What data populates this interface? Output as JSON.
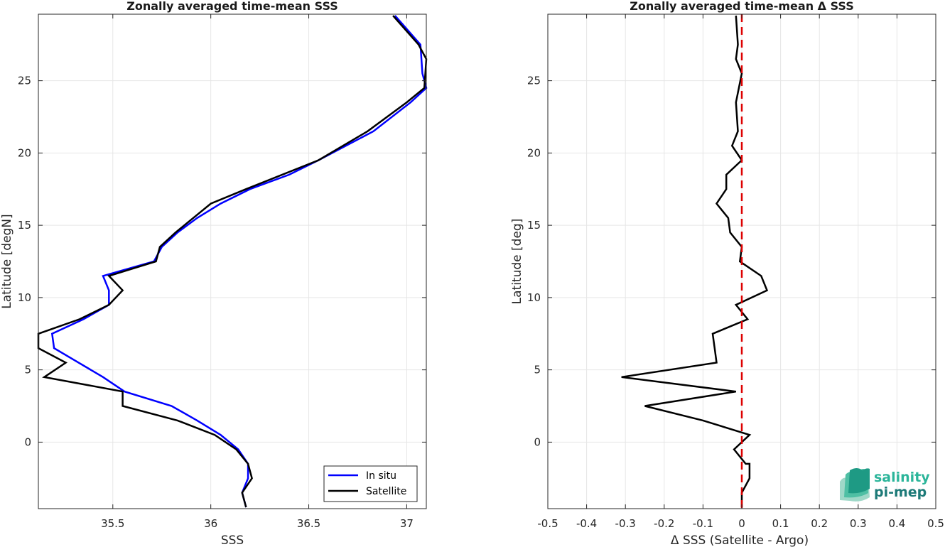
{
  "chart_data": [
    {
      "type": "line",
      "title": "Zonally averaged time-mean SSS",
      "xlabel": "SSS",
      "ylabel": "Latitude [degN]",
      "xlim": [
        35.12,
        37.1
      ],
      "ylim": [
        -4.6,
        29.6
      ],
      "xticks": [
        35.5,
        36,
        36.5,
        37
      ],
      "xtick_labels": [
        "35.5",
        "36",
        "36.5",
        "37"
      ],
      "yticks": [
        0,
        5,
        10,
        15,
        20,
        25
      ],
      "ytick_labels": [
        "0",
        "5",
        "10",
        "15",
        "20",
        "25"
      ],
      "grid": true,
      "legend_position": "bottom-right",
      "series": [
        {
          "name": "In situ",
          "color": "#0000ff",
          "x": [
            36.18,
            36.16,
            36.19,
            36.19,
            36.14,
            36.05,
            35.93,
            35.8,
            35.56,
            35.45,
            35.2,
            35.19,
            35.35,
            35.48,
            35.48,
            35.45,
            35.71,
            35.75,
            35.83,
            35.93,
            36.05,
            36.2,
            36.4,
            36.55,
            36.83,
            37.02,
            37.1,
            37.08,
            37.07,
            36.94
          ],
          "y": [
            -4.5,
            -3.5,
            -2.5,
            -1.5,
            -0.5,
            0.5,
            1.5,
            2.5,
            3.5,
            4.5,
            6.5,
            7.5,
            8.5,
            9.5,
            10.5,
            11.5,
            12.5,
            13.5,
            14.5,
            15.5,
            16.5,
            17.5,
            18.5,
            19.5,
            21.5,
            23.5,
            24.5,
            25.5,
            27.5,
            29.5
          ]
        },
        {
          "name": "Satellite",
          "color": "#000000",
          "x": [
            36.18,
            36.16,
            36.21,
            36.19,
            36.13,
            36.02,
            35.83,
            35.55,
            35.55,
            35.15,
            35.26,
            35.12,
            35.12,
            35.33,
            35.48,
            35.55,
            35.48,
            35.72,
            35.74,
            35.82,
            36.0,
            36.18,
            36.55,
            36.8,
            37.0,
            37.09,
            37.1,
            37.06,
            36.93
          ],
          "y": [
            -4.5,
            -3.5,
            -2.5,
            -1.5,
            -0.5,
            0.5,
            1.5,
            2.5,
            3.5,
            4.5,
            5.5,
            6.5,
            7.5,
            8.5,
            9.5,
            10.5,
            11.5,
            12.5,
            13.5,
            14.5,
            16.5,
            17.5,
            19.5,
            21.5,
            23.5,
            24.5,
            26.5,
            27.5,
            29.5
          ]
        }
      ]
    },
    {
      "type": "line",
      "title": "Zonally averaged time-mean Δ SSS",
      "xlabel": "Δ SSS (Satellite - Argo)",
      "ylabel": "Latitude [deg]",
      "xlim": [
        -0.5,
        0.5
      ],
      "ylim": [
        -4.6,
        29.6
      ],
      "xticks": [
        -0.5,
        -0.4,
        -0.3,
        -0.2,
        -0.1,
        0,
        0.1,
        0.2,
        0.3,
        0.4,
        0.5
      ],
      "xtick_labels": [
        "-0.5",
        "-0.4",
        "-0.3",
        "-0.2",
        "-0.1",
        "0",
        "0.1",
        "0.2",
        "0.3",
        "0.4",
        "0.5"
      ],
      "yticks": [
        0,
        5,
        10,
        15,
        20,
        25
      ],
      "ytick_labels": [
        "0",
        "5",
        "10",
        "15",
        "20",
        "25"
      ],
      "grid": true,
      "reference_line": {
        "x": 0,
        "color": "#dd0000",
        "style": "dashed"
      },
      "series": [
        {
          "color": "#000000",
          "x": [
            0.0,
            0.0,
            0.02,
            0.02,
            0.01,
            -0.02,
            0.02,
            -0.1,
            -0.25,
            -0.015,
            -0.31,
            -0.065,
            -0.07,
            -0.075,
            0.015,
            -0.015,
            0.065,
            0.05,
            -0.005,
            0.0,
            -0.03,
            -0.035,
            -0.065,
            -0.04,
            -0.04,
            0.0,
            -0.025,
            -0.01,
            -0.015,
            0.0,
            -0.015,
            -0.01,
            -0.015
          ],
          "y": [
            -4.5,
            -3.5,
            -2.5,
            -1.5,
            -1.5,
            -0.5,
            0.5,
            1.5,
            2.5,
            3.5,
            4.5,
            5.5,
            6.5,
            7.5,
            8.5,
            9.5,
            10.5,
            11.5,
            12.5,
            13.5,
            14.5,
            15.5,
            16.5,
            17.5,
            18.5,
            19.5,
            20.5,
            21.5,
            23.5,
            25.5,
            26.5,
            27.5,
            29.5
          ]
        }
      ]
    }
  ],
  "legend": {
    "items": [
      "In situ",
      "Satellite"
    ],
    "colors": [
      "#0000ff",
      "#000000"
    ]
  },
  "logo": {
    "line1": "salinity",
    "line2": "pi-mep",
    "color1": "#2bb59a",
    "color2": "#1d7a78"
  }
}
